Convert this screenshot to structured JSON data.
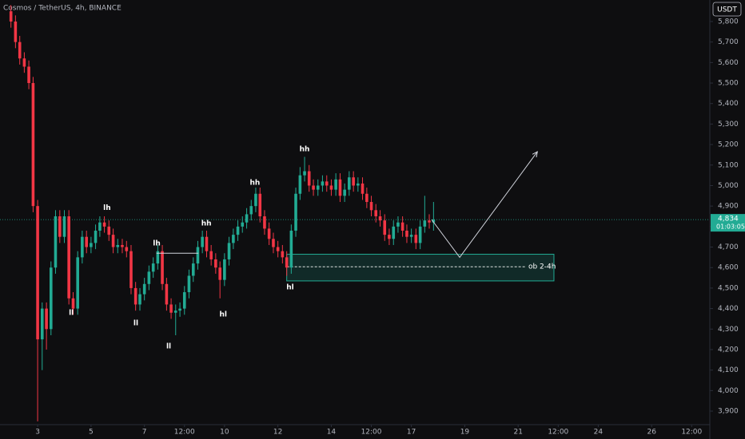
{
  "chart_data": {
    "type": "candlestick",
    "title": "Cosmos / TetherUS, 4h, BINANCE",
    "currency": "USDT",
    "up_color": "#22ab94",
    "down_color": "#f23645",
    "x": [
      2,
      2.17,
      2.33,
      2.5,
      2.67,
      2.83,
      3,
      3.17,
      3.33,
      3.5,
      3.67,
      3.83,
      4,
      4.17,
      4.33,
      4.5,
      4.67,
      4.83,
      5,
      5.17,
      5.33,
      5.5,
      5.67,
      5.83,
      6,
      6.17,
      6.33,
      6.5,
      6.67,
      6.83,
      7,
      7.17,
      7.33,
      7.5,
      7.67,
      7.83,
      8,
      8.17,
      8.33,
      8.5,
      8.67,
      8.83,
      9,
      9.17,
      9.33,
      9.5,
      9.67,
      9.83,
      10,
      10.17,
      10.33,
      10.5,
      10.67,
      10.83,
      11,
      11.17,
      11.33,
      11.5,
      11.67,
      11.83,
      12,
      12.17,
      12.33,
      12.5,
      12.67,
      12.83,
      13,
      13.17,
      13.33,
      13.5,
      13.67,
      13.83,
      14,
      14.17,
      14.33,
      14.5,
      14.67,
      14.83,
      15,
      15.17,
      15.33,
      15.5,
      15.67,
      15.83,
      16,
      16.17,
      16.33,
      16.5,
      16.67,
      16.83,
      17,
      17.17,
      17.33,
      17.5,
      17.67,
      17.83
    ],
    "open": [
      5850,
      5800,
      5700,
      5620,
      5580,
      5500,
      4900,
      4250,
      4400,
      4300,
      4600,
      4850,
      4750,
      4850,
      4450,
      4400,
      4650,
      4750,
      4700,
      4720,
      4780,
      4820,
      4800,
      4760,
      4700,
      4710,
      4700,
      4680,
      4500,
      4420,
      4470,
      4520,
      4580,
      4620,
      4680,
      4520,
      4420,
      4380,
      4390,
      4400,
      4480,
      4560,
      4620,
      4700,
      4750,
      4680,
      4640,
      4600,
      4540,
      4640,
      4720,
      4760,
      4800,
      4820,
      4860,
      4900,
      4960,
      4850,
      4790,
      4740,
      4700,
      4680,
      4650,
      4600,
      4780,
      4960,
      5050,
      5070,
      5000,
      4980,
      5000,
      5020,
      5000,
      4980,
      5030,
      4950,
      4980,
      5040,
      5000,
      5010,
      4960,
      4920,
      4880,
      4850,
      4830,
      4760,
      4740,
      4800,
      4820,
      4780,
      4750,
      4760,
      4720,
      4800,
      4830,
      4820
    ],
    "high": [
      5880,
      5830,
      5730,
      5650,
      5610,
      5530,
      4930,
      4430,
      4430,
      4630,
      4880,
      4880,
      4880,
      4880,
      4480,
      4680,
      4780,
      4780,
      4750,
      4810,
      4850,
      4850,
      4830,
      4790,
      4740,
      4740,
      4730,
      4710,
      4530,
      4500,
      4550,
      4610,
      4650,
      4710,
      4710,
      4550,
      4450,
      4420,
      4430,
      4510,
      4590,
      4650,
      4730,
      4780,
      4780,
      4710,
      4670,
      4630,
      4670,
      4750,
      4790,
      4830,
      4850,
      4890,
      4930,
      4990,
      4990,
      4880,
      4820,
      4770,
      4730,
      4710,
      4680,
      4810,
      4990,
      5090,
      5140,
      5100,
      5030,
      5030,
      5050,
      5050,
      5030,
      5060,
      5060,
      5010,
      5070,
      5070,
      5040,
      5040,
      4990,
      4950,
      4910,
      4880,
      4860,
      4790,
      4830,
      4850,
      4850,
      4810,
      4790,
      4790,
      4830,
      4950,
      4860,
      4920
    ],
    "low": [
      5770,
      5670,
      5590,
      5550,
      5470,
      4870,
      3850,
      4100,
      4200,
      4270,
      4570,
      4720,
      4720,
      4420,
      4370,
      4370,
      4620,
      4670,
      4670,
      4690,
      4750,
      4770,
      4730,
      4670,
      4670,
      4670,
      4650,
      4470,
      4390,
      4390,
      4440,
      4490,
      4550,
      4590,
      4490,
      4390,
      4350,
      4270,
      4360,
      4370,
      4450,
      4530,
      4590,
      4670,
      4650,
      4610,
      4570,
      4450,
      4510,
      4610,
      4690,
      4730,
      4770,
      4790,
      4830,
      4870,
      4820,
      4760,
      4710,
      4670,
      4650,
      4620,
      4560,
      4570,
      4750,
      4930,
      5020,
      4970,
      4950,
      4950,
      4970,
      4970,
      4950,
      4950,
      4920,
      4920,
      4950,
      4970,
      4970,
      4930,
      4890,
      4850,
      4820,
      4800,
      4730,
      4710,
      4710,
      4770,
      4750,
      4720,
      4720,
      4690,
      4690,
      4770,
      4790,
      4780
    ],
    "close": [
      5800,
      5700,
      5620,
      5580,
      5500,
      4900,
      4250,
      4400,
      4300,
      4600,
      4850,
      4750,
      4850,
      4450,
      4400,
      4650,
      4750,
      4700,
      4720,
      4780,
      4820,
      4800,
      4760,
      4700,
      4710,
      4700,
      4680,
      4500,
      4420,
      4470,
      4520,
      4580,
      4620,
      4680,
      4520,
      4420,
      4380,
      4390,
      4400,
      4480,
      4560,
      4620,
      4700,
      4750,
      4680,
      4640,
      4600,
      4540,
      4640,
      4720,
      4760,
      4800,
      4820,
      4860,
      4900,
      4960,
      4850,
      4790,
      4740,
      4700,
      4680,
      4650,
      4600,
      4780,
      4960,
      5050,
      5070,
      5000,
      4980,
      5000,
      5020,
      5000,
      4980,
      5030,
      4950,
      4980,
      5040,
      5000,
      5010,
      4960,
      4920,
      4880,
      4850,
      4830,
      4760,
      4740,
      4800,
      4820,
      4780,
      4750,
      4760,
      4720,
      4800,
      4830,
      4820,
      4834
    ],
    "xlim": [
      1.59,
      28.18
    ],
    "ylim": [
      3834,
      5905
    ],
    "xticks": [
      3,
      5,
      7,
      {
        "value": 8.5,
        "label": "12:00"
      },
      10,
      12,
      14,
      {
        "value": 15.5,
        "label": "12:00"
      },
      17,
      19,
      21,
      {
        "value": 22.5,
        "label": "12:00"
      },
      24,
      26,
      {
        "value": 27.5,
        "label": "12:00"
      }
    ],
    "yticks": [
      {
        "value": 3900,
        "label": "3,900"
      },
      {
        "value": 4000,
        "label": "4,000"
      },
      {
        "value": 4100,
        "label": "4,100"
      },
      {
        "value": 4200,
        "label": "4,200"
      },
      {
        "value": 4300,
        "label": "4,300"
      },
      {
        "value": 4400,
        "label": "4,400"
      },
      {
        "value": 4500,
        "label": "4,500"
      },
      {
        "value": 4600,
        "label": "4,600"
      },
      {
        "value": 4700,
        "label": "4,700"
      },
      {
        "value": 4800,
        "label": "4,800"
      },
      {
        "value": 4900,
        "label": "4,900"
      },
      {
        "value": 5000,
        "label": "5,000"
      },
      {
        "value": 5100,
        "label": "5,100"
      },
      {
        "value": 5200,
        "label": "5,200"
      },
      {
        "value": 5300,
        "label": "5,300"
      },
      {
        "value": 5400,
        "label": "5,400"
      },
      {
        "value": 5500,
        "label": "5,500"
      },
      {
        "value": 5600,
        "label": "5,600"
      },
      {
        "value": 5700,
        "label": "5,700"
      },
      {
        "value": 5800,
        "label": "5,800"
      }
    ],
    "last_price": {
      "value": 4834,
      "label": "4,834"
    },
    "countdown": "01:03:05",
    "annotations": [
      {
        "text": "lh",
        "x": 5.6,
        "y": 4890
      },
      {
        "text": "ll",
        "x": 4.26,
        "y": 4379
      },
      {
        "text": "ll",
        "x": 6.68,
        "y": 4328
      },
      {
        "text": "lh",
        "x": 7.46,
        "y": 4717
      },
      {
        "text": "ll",
        "x": 7.91,
        "y": 4215
      },
      {
        "text": "hh",
        "x": 9.32,
        "y": 4815
      },
      {
        "text": "hl",
        "x": 9.95,
        "y": 4371
      },
      {
        "text": "hh",
        "x": 11.14,
        "y": 5013
      },
      {
        "text": "hh",
        "x": 13.0,
        "y": 5177
      },
      {
        "text": "hl",
        "x": 12.46,
        "y": 4503
      }
    ],
    "level_line": {
      "x": [
        7.45,
        9.02
      ],
      "y": 4670
    },
    "zone": {
      "label": "ob 2-4h",
      "x": [
        12.33,
        22.34
      ],
      "y": [
        4535,
        4665
      ],
      "mid": 4604
    },
    "projection": {
      "x": [
        17.76,
        18.81,
        21.72
      ],
      "y": [
        4834,
        4650,
        5165
      ]
    }
  }
}
